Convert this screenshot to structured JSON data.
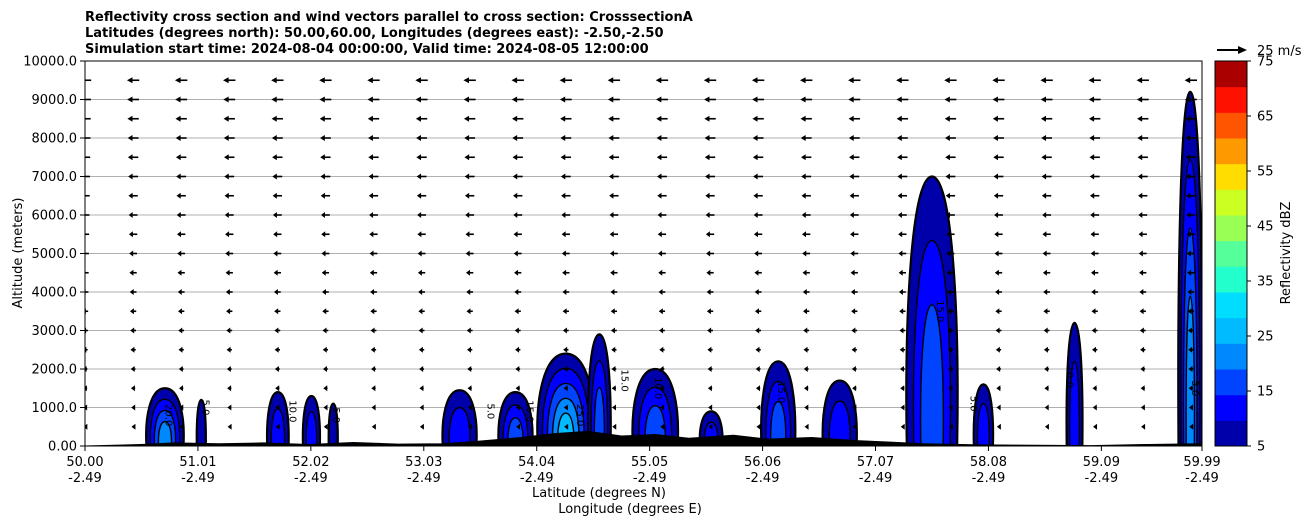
{
  "chart_data": {
    "type": "heatmap",
    "title_lines": [
      "Reflectivity cross section and wind vectors parallel to cross section: CrosssectionA",
      "Latitudes (degrees north): 50.00,60.00, Longitudes (degrees east): -2.50,-2.50",
      "Simulation start time: 2024-08-04 00:00:00, Valid time: 2024-08-05 12:00:00"
    ],
    "xlabel": "Latitude (degrees N)",
    "xlabel2": "Longitude (degrees E)",
    "ylabel": "Altitude (meters)",
    "xlim": [
      50.0,
      59.99
    ],
    "ylim": [
      0,
      10000
    ],
    "x_ticks": [
      {
        "value": 50.0,
        "lat": "50.00",
        "lon": "-2.49"
      },
      {
        "value": 51.01,
        "lat": "51.01",
        "lon": "-2.49"
      },
      {
        "value": 52.02,
        "lat": "52.02",
        "lon": "-2.49"
      },
      {
        "value": 53.03,
        "lat": "53.03",
        "lon": "-2.49"
      },
      {
        "value": 54.04,
        "lat": "54.04",
        "lon": "-2.49"
      },
      {
        "value": 55.05,
        "lat": "55.05",
        "lon": "-2.49"
      },
      {
        "value": 56.06,
        "lat": "56.06",
        "lon": "-2.49"
      },
      {
        "value": 57.07,
        "lat": "57.07",
        "lon": "-2.49"
      },
      {
        "value": 58.08,
        "lat": "58.08",
        "lon": "-2.49"
      },
      {
        "value": 59.09,
        "lat": "59.09",
        "lon": "-2.49"
      },
      {
        "value": 59.99,
        "lat": "59.99",
        "lon": "-2.49"
      }
    ],
    "y_ticks": [
      {
        "value": 0,
        "label": "0.00"
      },
      {
        "value": 1000,
        "label": "1000.0"
      },
      {
        "value": 2000,
        "label": "2000.0"
      },
      {
        "value": 3000,
        "label": "3000.0"
      },
      {
        "value": 4000,
        "label": "4000.0"
      },
      {
        "value": 5000,
        "label": "5000.0"
      },
      {
        "value": 6000,
        "label": "6000.0"
      },
      {
        "value": 7000,
        "label": "7000.0"
      },
      {
        "value": 8000,
        "label": "8000.0"
      },
      {
        "value": 9000,
        "label": "9000.0"
      },
      {
        "value": 10000,
        "label": "10000.0"
      }
    ],
    "grid": "horizontal",
    "colorbar": {
      "label": "Reflectivity dBZ",
      "min": 5,
      "max": 75,
      "ticks": [
        {
          "value": 5,
          "label": "5"
        },
        {
          "value": 15,
          "label": "15"
        },
        {
          "value": 25,
          "label": "25"
        },
        {
          "value": 35,
          "label": "35"
        },
        {
          "value": 45,
          "label": "45"
        },
        {
          "value": 55,
          "label": "55"
        },
        {
          "value": 65,
          "label": "65"
        },
        {
          "value": 75,
          "label": "75"
        }
      ],
      "colors": [
        "#0000aa",
        "#0000ff",
        "#0044ff",
        "#0088ff",
        "#00bbff",
        "#00ddff",
        "#22ffcc",
        "#55ff99",
        "#99ff55",
        "#ccff22",
        "#ffdd00",
        "#ff9900",
        "#ff5500",
        "#ff1100",
        "#aa0000"
      ]
    },
    "quiver_key": {
      "label": "25 m/s",
      "speed": 25
    },
    "wind_vectors": {
      "x": [
        50.0,
        50.43,
        50.86,
        51.29,
        51.72,
        52.15,
        52.58,
        53.01,
        53.44,
        53.87,
        54.3,
        54.73,
        55.16,
        55.59,
        56.02,
        56.45,
        56.88,
        57.31,
        57.74,
        58.17,
        58.6,
        59.03,
        59.46,
        59.89
      ],
      "y": [
        500,
        1000,
        1500,
        2000,
        2500,
        3000,
        3500,
        4000,
        4500,
        5000,
        5500,
        6000,
        6500,
        7000,
        7500,
        8000,
        8500,
        9000,
        9500
      ],
      "u_surface": -3,
      "u_top": -14,
      "v": 0
    },
    "ground_profile": [
      [
        50.0,
        0
      ],
      [
        50.5,
        40
      ],
      [
        50.8,
        80
      ],
      [
        51.2,
        60
      ],
      [
        51.6,
        80
      ],
      [
        52.0,
        40
      ],
      [
        52.4,
        90
      ],
      [
        52.8,
        50
      ],
      [
        53.2,
        60
      ],
      [
        53.5,
        120
      ],
      [
        53.9,
        220
      ],
      [
        54.2,
        320
      ],
      [
        54.5,
        380
      ],
      [
        54.8,
        260
      ],
      [
        55.1,
        300
      ],
      [
        55.4,
        200
      ],
      [
        55.8,
        280
      ],
      [
        56.1,
        180
      ],
      [
        56.5,
        220
      ],
      [
        56.9,
        140
      ],
      [
        57.2,
        100
      ],
      [
        57.5,
        60
      ],
      [
        58.0,
        30
      ],
      [
        58.5,
        20
      ],
      [
        59.0,
        10
      ],
      [
        59.5,
        40
      ],
      [
        59.99,
        60
      ]
    ],
    "reflectivity_cells": [
      {
        "x": [
          50.55,
          50.88
        ],
        "top": 1500,
        "levels": [
          5,
          10,
          15,
          20
        ]
      },
      {
        "x": [
          51.0,
          51.08
        ],
        "top": 1200,
        "levels": [
          5
        ]
      },
      {
        "x": [
          51.63,
          51.82
        ],
        "top": 1400,
        "levels": [
          5,
          10
        ]
      },
      {
        "x": [
          51.95,
          52.1
        ],
        "top": 1300,
        "levels": [
          5,
          10
        ]
      },
      {
        "x": [
          52.18,
          52.26
        ],
        "top": 1100,
        "levels": [
          5
        ]
      },
      {
        "x": [
          53.2,
          53.5
        ],
        "top": 1450,
        "levels": [
          5,
          10
        ]
      },
      {
        "x": [
          53.7,
          54.0
        ],
        "top": 1400,
        "levels": [
          5,
          10,
          15
        ]
      },
      {
        "x": [
          54.05,
          54.55
        ],
        "top": 2400,
        "levels": [
          5,
          10,
          15,
          20,
          25
        ]
      },
      {
        "x": [
          54.5,
          54.7
        ],
        "top": 2900,
        "levels": [
          5,
          10,
          15
        ]
      },
      {
        "x": [
          54.9,
          55.3
        ],
        "top": 2000,
        "levels": [
          5,
          10,
          15
        ]
      },
      {
        "x": [
          55.5,
          55.7
        ],
        "top": 900,
        "levels": [
          5,
          10
        ]
      },
      {
        "x": [
          56.05,
          56.35
        ],
        "top": 2200,
        "levels": [
          5,
          10,
          15
        ]
      },
      {
        "x": [
          56.6,
          56.9
        ],
        "top": 1700,
        "levels": [
          5,
          10
        ]
      },
      {
        "x": [
          57.35,
          57.8
        ],
        "top": 7000,
        "levels": [
          5,
          10,
          15
        ]
      },
      {
        "x": [
          57.95,
          58.12
        ],
        "top": 1600,
        "levels": [
          5,
          10
        ]
      },
      {
        "x": [
          58.78,
          58.92
        ],
        "top": 3200,
        "levels": [
          5,
          10
        ]
      },
      {
        "x": [
          59.78,
          59.99
        ],
        "top": 9200,
        "levels": [
          5,
          10,
          15,
          20
        ]
      }
    ],
    "contour_labels": [
      {
        "x": 50.72,
        "y": 800,
        "text": "20.0"
      },
      {
        "x": 51.05,
        "y": 1000,
        "text": "5.0"
      },
      {
        "x": 51.83,
        "y": 900,
        "text": "10.0"
      },
      {
        "x": 52.22,
        "y": 800,
        "text": "5.0"
      },
      {
        "x": 53.6,
        "y": 900,
        "text": "5.0"
      },
      {
        "x": 53.95,
        "y": 900,
        "text": "15.0"
      },
      {
        "x": 54.4,
        "y": 800,
        "text": "25.0"
      },
      {
        "x": 54.8,
        "y": 1700,
        "text": "15.0"
      },
      {
        "x": 55.1,
        "y": 1500,
        "text": "10.0"
      },
      {
        "x": 56.2,
        "y": 1400,
        "text": "15.0"
      },
      {
        "x": 57.62,
        "y": 3500,
        "text": "15.0"
      },
      {
        "x": 57.92,
        "y": 1100,
        "text": "5.0"
      },
      {
        "x": 58.78,
        "y": 1800,
        "text": "10.0"
      },
      {
        "x": 59.9,
        "y": 1500,
        "text": "5.0"
      }
    ]
  }
}
